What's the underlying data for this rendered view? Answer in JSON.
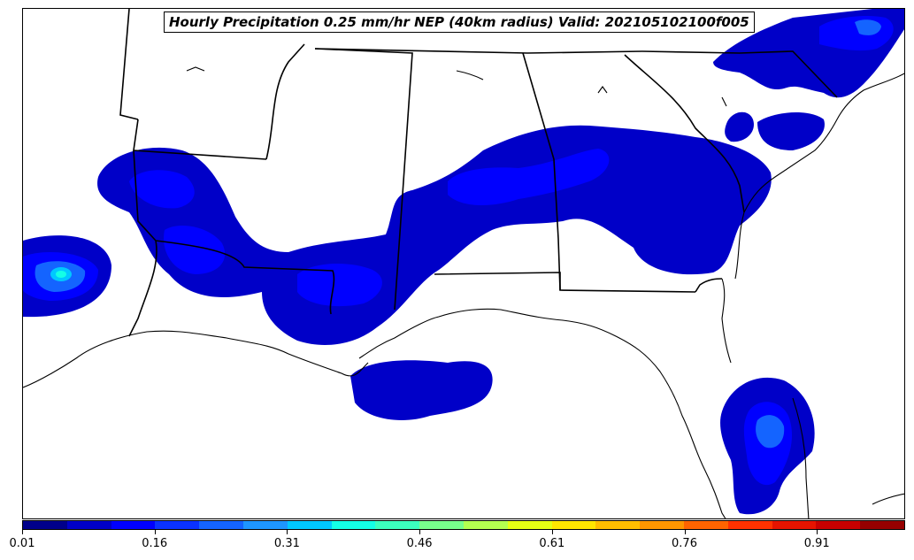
{
  "title": "Hourly Precipitation 0.25 mm/hr NEP (40km radius) Valid: 202105102100f005",
  "colorbar": {
    "colors": [
      "#00008b",
      "#0000c8",
      "#0000ff",
      "#0a32ff",
      "#1464ff",
      "#1e96ff",
      "#00c8ff",
      "#14ffe6",
      "#3cffbe",
      "#78ff8c",
      "#b4ff50",
      "#e6ff14",
      "#ffe600",
      "#ffbe00",
      "#ff9600",
      "#ff6400",
      "#ff3200",
      "#e61400",
      "#c80000",
      "#960000"
    ],
    "ticks": [
      "0.01",
      "0.16",
      "0.31",
      "0.46",
      "0.61",
      "0.76",
      "0.91"
    ],
    "tick_values": [
      0.01,
      0.16,
      0.31,
      0.46,
      0.61,
      0.76,
      0.91
    ],
    "range": [
      0.01,
      1.01
    ]
  },
  "map": {
    "features": [
      "state-borders",
      "coastline"
    ],
    "precip_colors": {
      "low": "#0000c8",
      "mid": "#0000ff",
      "high": "#1464ff",
      "peak": "#00c8ff"
    }
  }
}
